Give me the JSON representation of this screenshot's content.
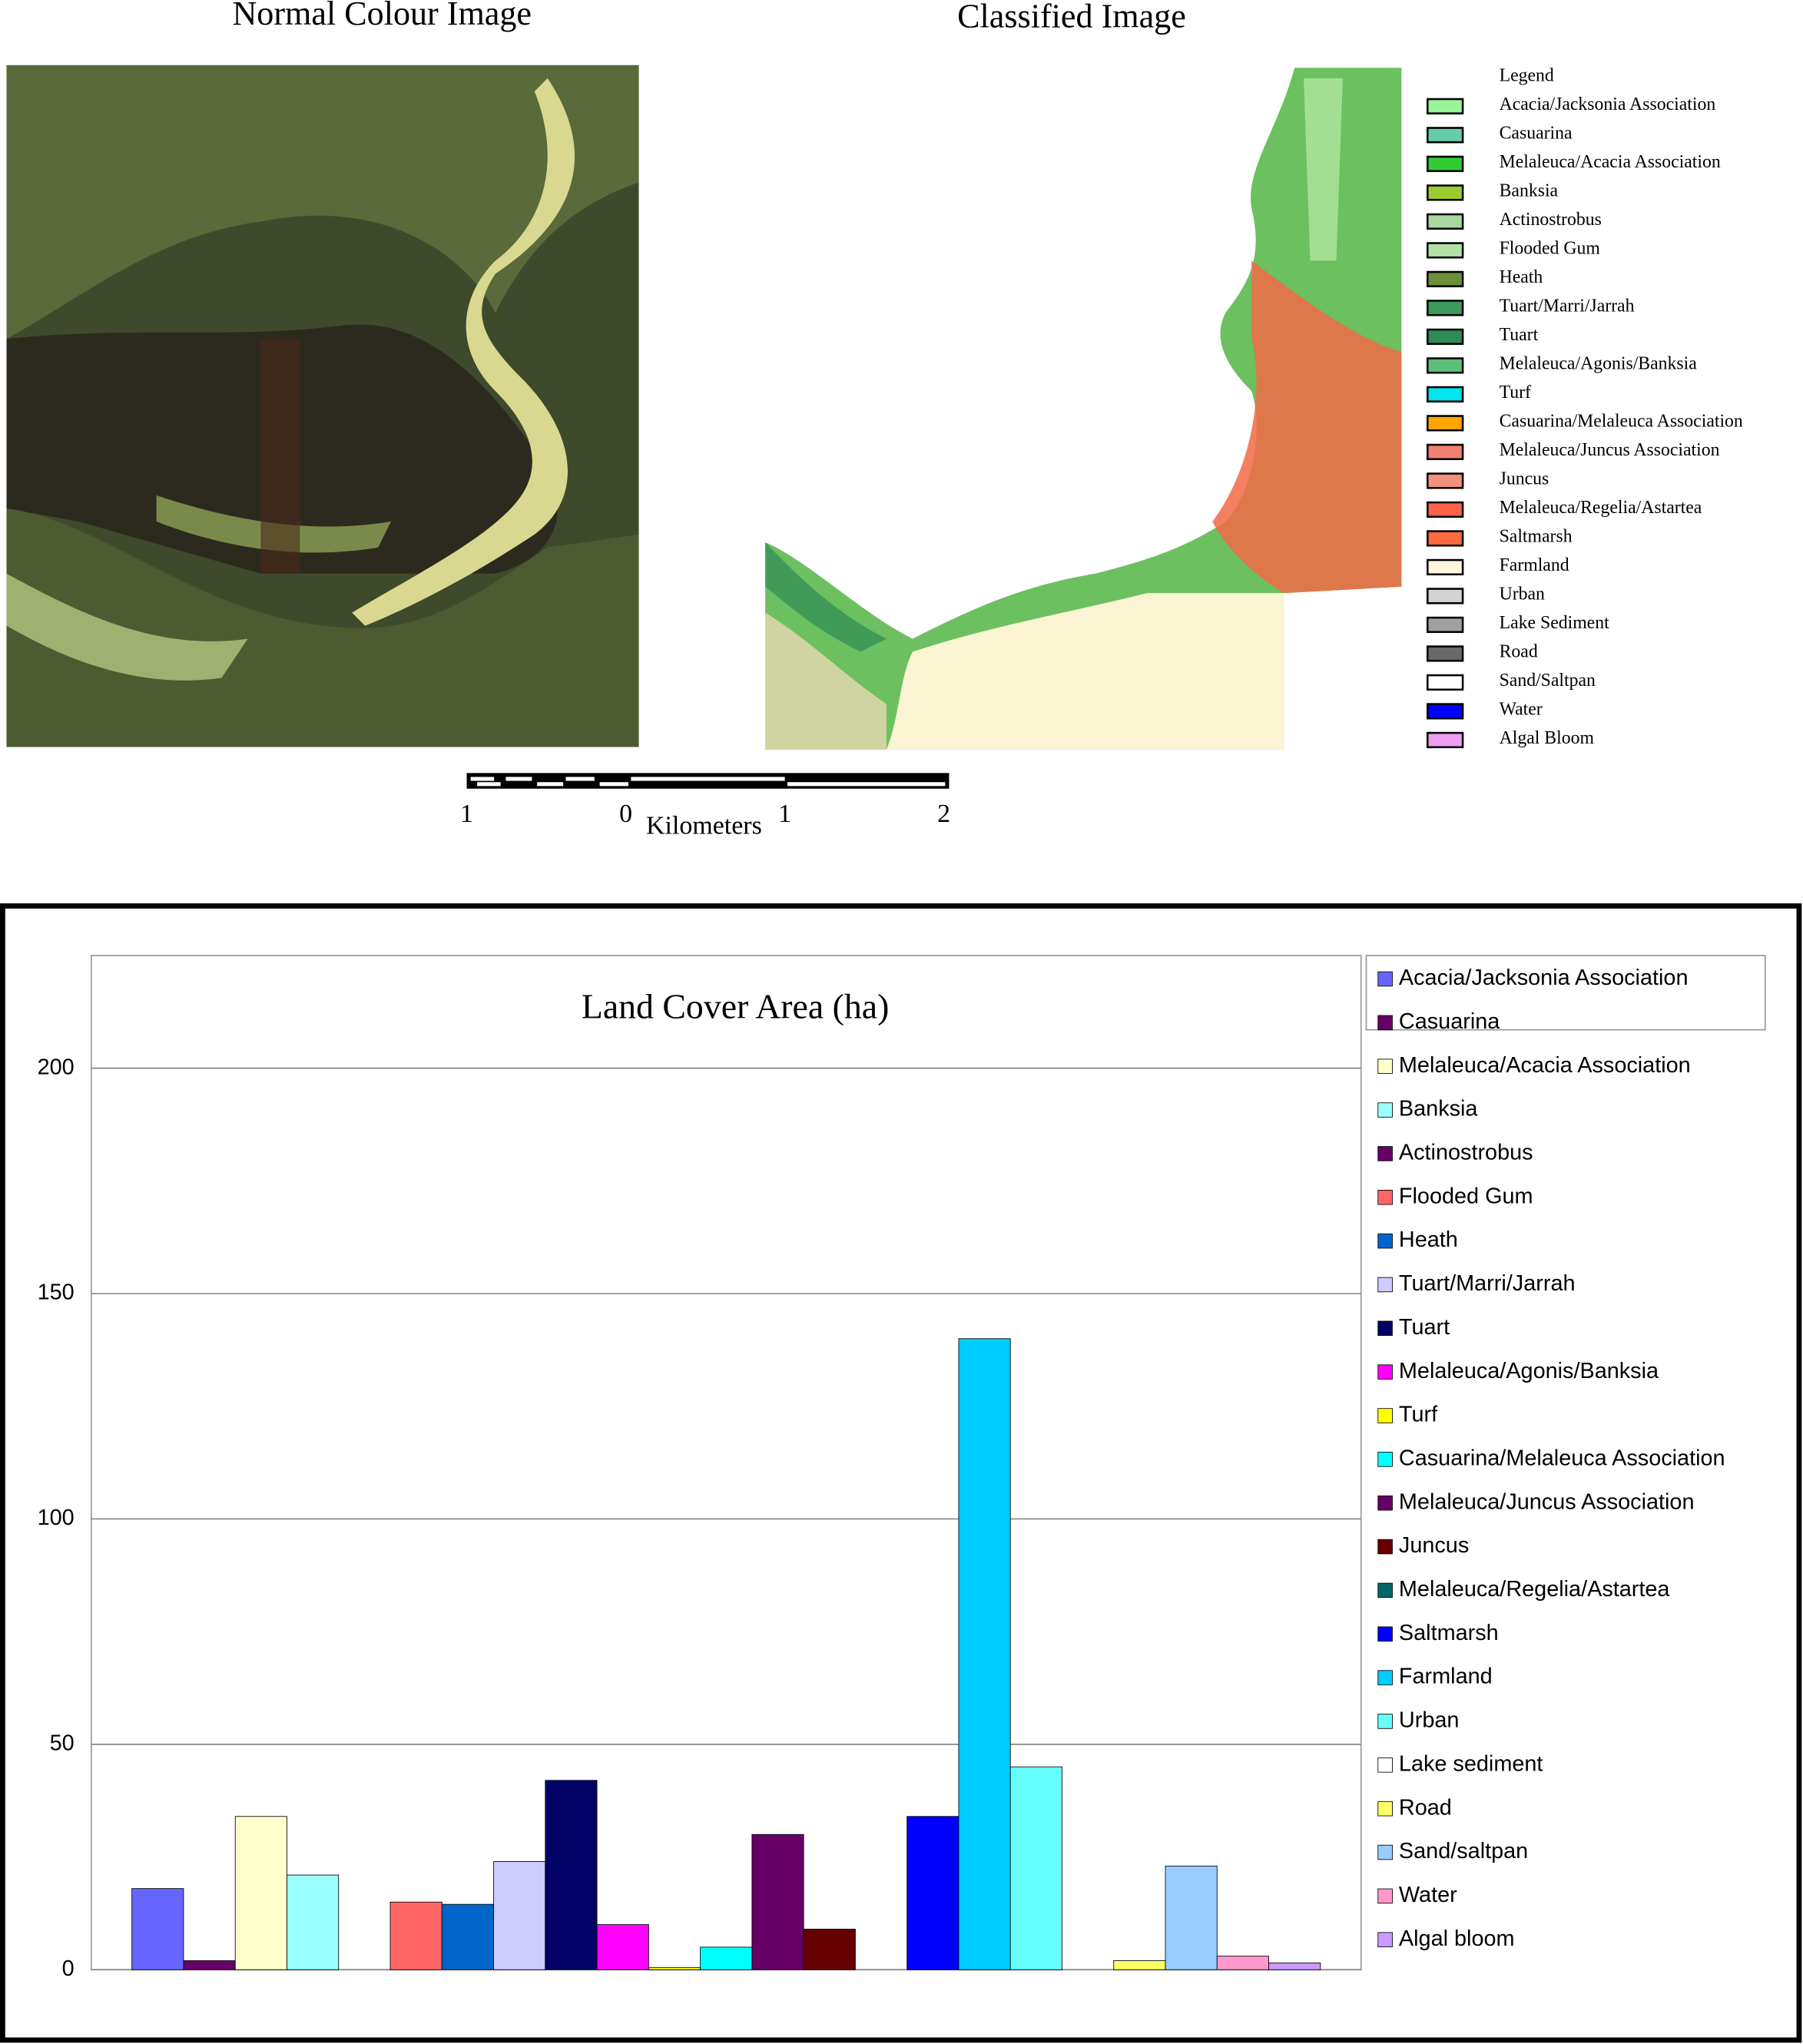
{
  "figure": {
    "normal_image": {
      "title": "Normal Colour Image"
    },
    "classified_image": {
      "title": "Classified  Image"
    },
    "legend": {
      "title": "Legend",
      "items": [
        {
          "label": "Acacia/Jacksonia Association",
          "color": "#98f598"
        },
        {
          "label": "Casuarina",
          "color": "#66cdaa"
        },
        {
          "label": "Melaleuca/Acacia Association",
          "color": "#32cd32"
        },
        {
          "label": "Banksia",
          "color": "#9acd32"
        },
        {
          "label": "Actinostrobus",
          "color": "#a8d8a0"
        },
        {
          "label": "Flooded Gum",
          "color": "#b4e0a8"
        },
        {
          "label": "Heath",
          "color": "#6b8e3a"
        },
        {
          "label": "Tuart/Marri/Jarrah",
          "color": "#3c9a5a"
        },
        {
          "label": "Tuart",
          "color": "#2e8b57"
        },
        {
          "label": "Melaleuca/Agonis/Banksia",
          "color": "#5cbf7a"
        },
        {
          "label": "Turf",
          "color": "#00e5ee"
        },
        {
          "label": "Casuarina/Melaleuca Association",
          "color": "#ffa500"
        },
        {
          "label": "Melaleuca/Juncus Association",
          "color": "#f08070"
        },
        {
          "label": "Juncus",
          "color": "#f4907e"
        },
        {
          "label": "Melaleuca/Regelia/Astartea",
          "color": "#ff6347"
        },
        {
          "label": "Saltmarsh",
          "color": "#ff6a40"
        },
        {
          "label": "Farmland",
          "color": "#fff8dc"
        },
        {
          "label": "Urban",
          "color": "#d3d3d3"
        },
        {
          "label": "Lake Sediment",
          "color": "#a0a0a0"
        },
        {
          "label": "Road",
          "color": "#696969"
        },
        {
          "label": "Sand/Saltpan",
          "color": "#ffffff"
        },
        {
          "label": "Water",
          "color": "#0000ff"
        },
        {
          "label": "Algal Bloom",
          "color": "#ee9eee"
        }
      ]
    },
    "scale_bar": {
      "labels": [
        "1",
        "0",
        "1",
        "2"
      ],
      "unit": "Kilometers"
    }
  },
  "chart_data": {
    "type": "bar",
    "title": "Land Cover Area (ha)",
    "categories": [
      null
    ],
    "ylim": [
      0,
      225
    ],
    "yticks": [
      0,
      50,
      100,
      150,
      200
    ],
    "grid": true,
    "legend": "right",
    "series": [
      {
        "name": "Acacia/Jacksonia  Association",
        "color": "#6666ff",
        "values": [
          18
        ]
      },
      {
        "name": "Casuarina",
        "color": "#660066",
        "values": [
          2
        ]
      },
      {
        "name": "Melaleuca/Acacia Association",
        "color": "#ffffcc",
        "values": [
          34
        ]
      },
      {
        "name": "Banksia",
        "color": "#99ffff",
        "values": [
          21
        ]
      },
      {
        "name": "Actinostrobus",
        "color": "#660066",
        "values": [
          0
        ]
      },
      {
        "name": "Flooded Gum",
        "color": "#ff6666",
        "values": [
          15
        ]
      },
      {
        "name": "Heath",
        "color": "#0066cc",
        "values": [
          14.5
        ]
      },
      {
        "name": "Tuart/Marri/Jarrah",
        "color": "#ccccff",
        "values": [
          24
        ]
      },
      {
        "name": "Tuart",
        "color": "#000066",
        "values": [
          42
        ]
      },
      {
        "name": "Melaleuca/Agonis/Banksia",
        "color": "#ff00ff",
        "values": [
          10
        ]
      },
      {
        "name": "Turf",
        "color": "#ffff00",
        "values": [
          0.5
        ]
      },
      {
        "name": "Casuarina/Melaleuca Association",
        "color": "#00ffff",
        "values": [
          5
        ]
      },
      {
        "name": "Melaleuca/Juncus Association",
        "color": "#660066",
        "values": [
          30
        ]
      },
      {
        "name": "Juncus",
        "color": "#660000",
        "values": [
          9
        ]
      },
      {
        "name": "Melaleuca/Regelia/Astartea",
        "color": "#006666",
        "values": [
          0
        ]
      },
      {
        "name": "Saltmarsh",
        "color": "#0000ff",
        "values": [
          34
        ]
      },
      {
        "name": "Farmland",
        "color": "#00ccff",
        "values": [
          140
        ]
      },
      {
        "name": "Urban",
        "color": "#66ffff",
        "values": [
          45
        ]
      },
      {
        "name": "Lake sediment",
        "color": "#ffffff",
        "values": [
          0
        ]
      },
      {
        "name": "Road",
        "color": "#ffff66",
        "values": [
          2
        ]
      },
      {
        "name": "Sand/saltpan",
        "color": "#99ccff",
        "values": [
          23
        ]
      },
      {
        "name": "Water",
        "color": "#ff99cc",
        "values": [
          3
        ]
      },
      {
        "name": "Algal bloom",
        "color": "#cc99ff",
        "values": [
          1.5
        ]
      }
    ]
  }
}
